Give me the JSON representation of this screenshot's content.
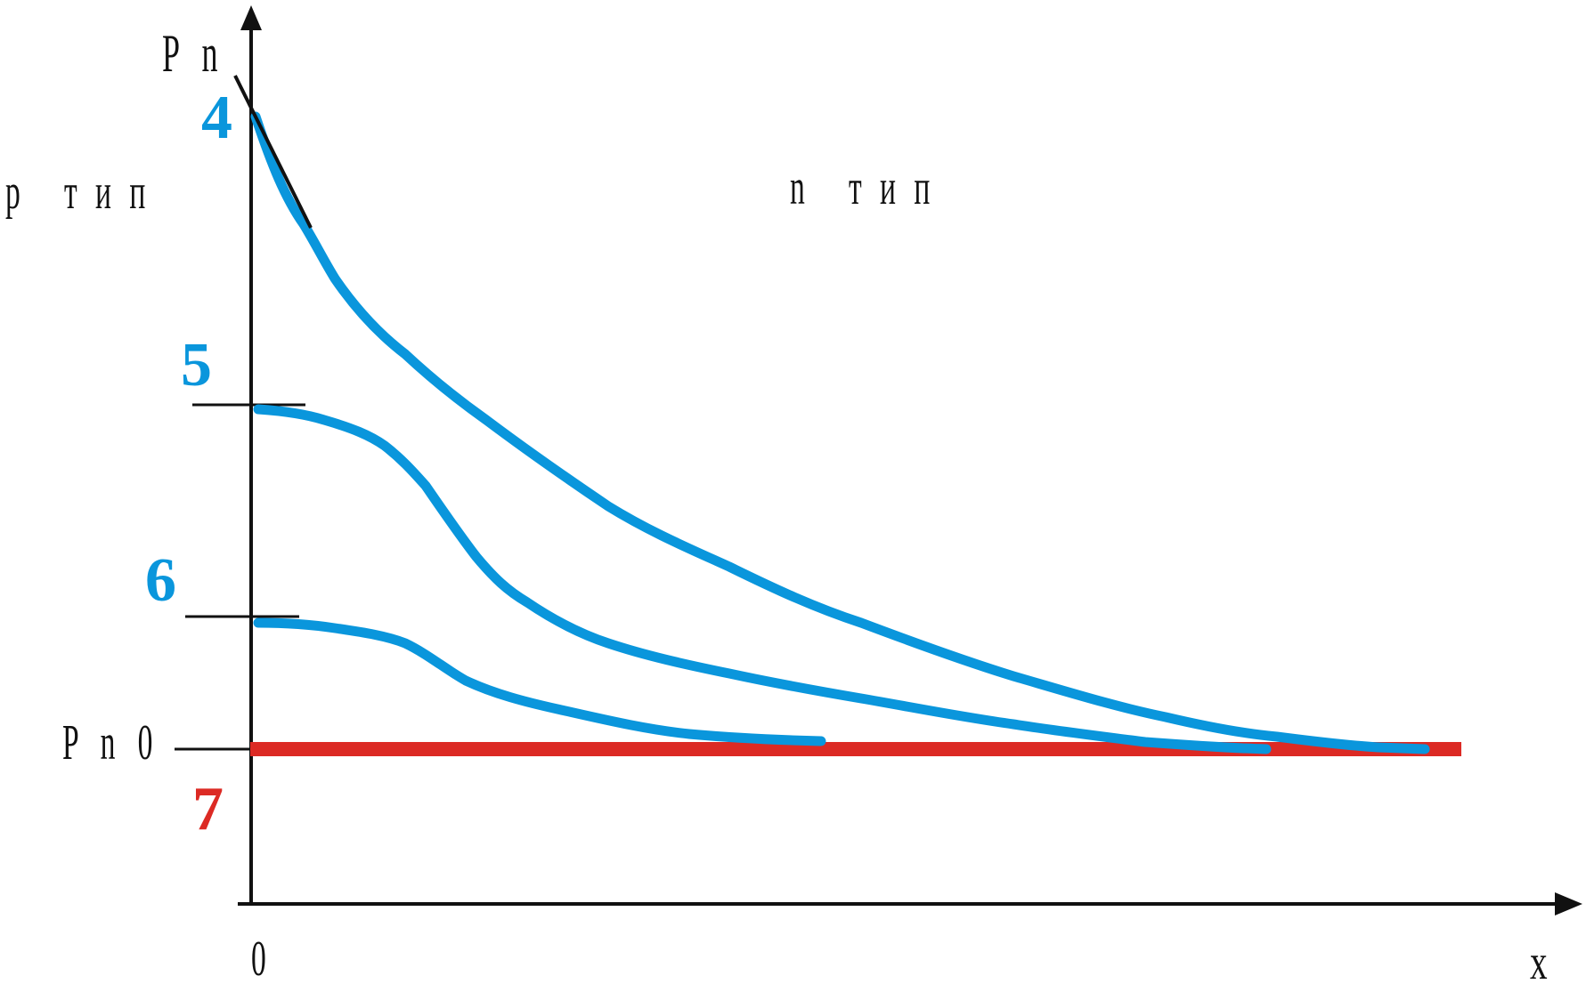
{
  "labels": {
    "y_axis": "P n",
    "x_axis": "x",
    "origin": "0",
    "p_region": "p   т и п",
    "n_region": "n   т и п",
    "equilibrium": "P n 0"
  },
  "curves": {
    "c4": "4",
    "c5": "5",
    "c6": "6",
    "c7": "7"
  },
  "colors": {
    "curve": "#0a96dc",
    "equilibrium_line": "#dc2a24",
    "axis": "#111111"
  }
}
